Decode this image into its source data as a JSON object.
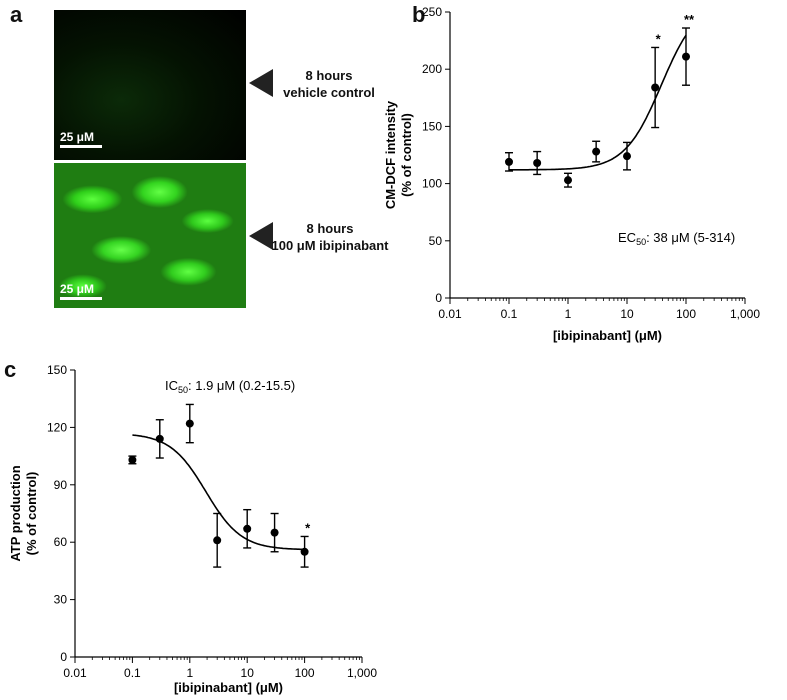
{
  "panels": {
    "a": {
      "letter": "a",
      "top_image": {
        "scale": "25 μM",
        "caption_line1": "8 hours",
        "caption_line2": "vehicle control"
      },
      "bottom_image": {
        "scale": "25 μM",
        "caption_line1": "8 hours",
        "caption_line2": "100 μM ibipinabant"
      }
    },
    "b": {
      "letter": "b"
    },
    "c": {
      "letter": "c"
    }
  },
  "chart_data": [
    {
      "id": "b",
      "type": "scatter",
      "xscale": "log",
      "xlim": [
        0.01,
        1000
      ],
      "ylim": [
        0,
        250
      ],
      "xticks": [
        "0.01",
        "0.1",
        "1",
        "10",
        "100",
        "1,000"
      ],
      "yticks": [
        "0",
        "50",
        "100",
        "150",
        "200",
        "250"
      ],
      "xlabel": "[ibipinabant] (μM)",
      "ylabel_line1": "CM-DCF intensity",
      "ylabel_line2": "(% of control)",
      "annotation_main": "EC",
      "annotation_sub": "50",
      "annotation_rest": ": 38 μM (5-314)",
      "points": [
        {
          "x": 0.1,
          "y": 119,
          "err": 8,
          "sig": ""
        },
        {
          "x": 0.3,
          "y": 118,
          "err": 10,
          "sig": ""
        },
        {
          "x": 1,
          "y": 103,
          "err": 6,
          "sig": ""
        },
        {
          "x": 3,
          "y": 128,
          "err": 9,
          "sig": ""
        },
        {
          "x": 10,
          "y": 124,
          "err": 12,
          "sig": ""
        },
        {
          "x": 30,
          "y": 184,
          "err": 35,
          "sig": "*"
        },
        {
          "x": 100,
          "y": 211,
          "err": 25,
          "sig": "**"
        }
      ],
      "fit": {
        "model": "sigmoid",
        "bottom": 112,
        "top": 260,
        "ec50": 38,
        "hill": 1.4
      }
    },
    {
      "id": "c",
      "type": "scatter",
      "xscale": "log",
      "xlim": [
        0.01,
        1000
      ],
      "ylim": [
        0,
        150
      ],
      "xticks": [
        "0.01",
        "0.1",
        "1",
        "10",
        "100",
        "1,000"
      ],
      "yticks": [
        "0",
        "30",
        "60",
        "90",
        "120",
        "150"
      ],
      "xlabel": "[ibipinabant] (μM)",
      "ylabel_line1": "ATP production",
      "ylabel_line2": "(% of control)",
      "annotation_main": "IC",
      "annotation_sub": "50",
      "annotation_rest": ": 1.9 μM (0.2-15.5)",
      "points": [
        {
          "x": 0.1,
          "y": 103,
          "err": 2,
          "sig": ""
        },
        {
          "x": 0.3,
          "y": 114,
          "err": 10,
          "sig": ""
        },
        {
          "x": 1,
          "y": 122,
          "err": 10,
          "sig": ""
        },
        {
          "x": 3,
          "y": 61,
          "err": 14,
          "sig": ""
        },
        {
          "x": 10,
          "y": 67,
          "err": 10,
          "sig": ""
        },
        {
          "x": 30,
          "y": 65,
          "err": 10,
          "sig": ""
        },
        {
          "x": 100,
          "y": 55,
          "err": 8,
          "sig": "*"
        }
      ],
      "fit": {
        "model": "sigmoid",
        "bottom": 56,
        "top": 117,
        "ec50": 1.9,
        "hill": -1.4
      }
    }
  ]
}
